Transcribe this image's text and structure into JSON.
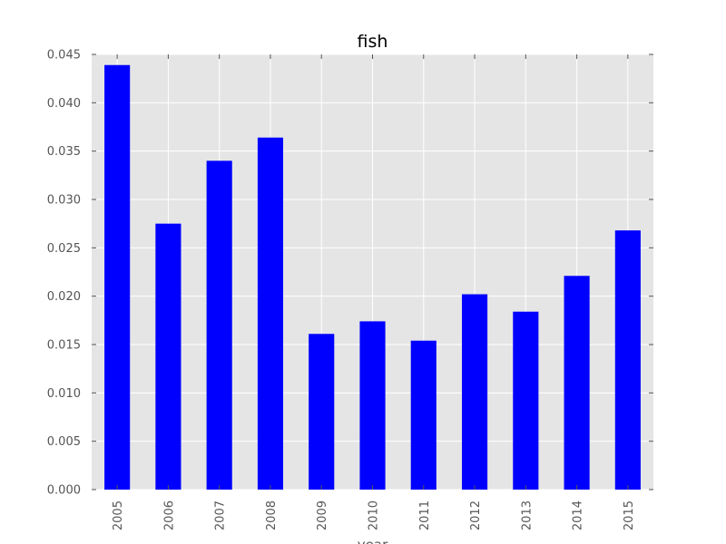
{
  "chart_data": {
    "type": "bar",
    "title": "fish",
    "xlabel": "year",
    "ylabel": "",
    "categories": [
      "2005",
      "2006",
      "2007",
      "2008",
      "2009",
      "2010",
      "2011",
      "2012",
      "2013",
      "2014",
      "2015"
    ],
    "series": [
      {
        "values": [
          0.0439,
          0.0275,
          0.034,
          0.0364,
          0.0161,
          0.0174,
          0.0154,
          0.0202,
          0.0184,
          0.0221,
          0.0268
        ]
      }
    ],
    "ylim": [
      0,
      0.045
    ],
    "yticks": [
      "0.000",
      "0.005",
      "0.010",
      "0.015",
      "0.020",
      "0.025",
      "0.030",
      "0.035",
      "0.040",
      "0.045"
    ],
    "grid": true,
    "legend": "none",
    "colors": {
      "bar": "#0000ff",
      "plot_background": "#e5e5e5",
      "grid": "#ffffff",
      "tick_text": "#555555"
    }
  }
}
